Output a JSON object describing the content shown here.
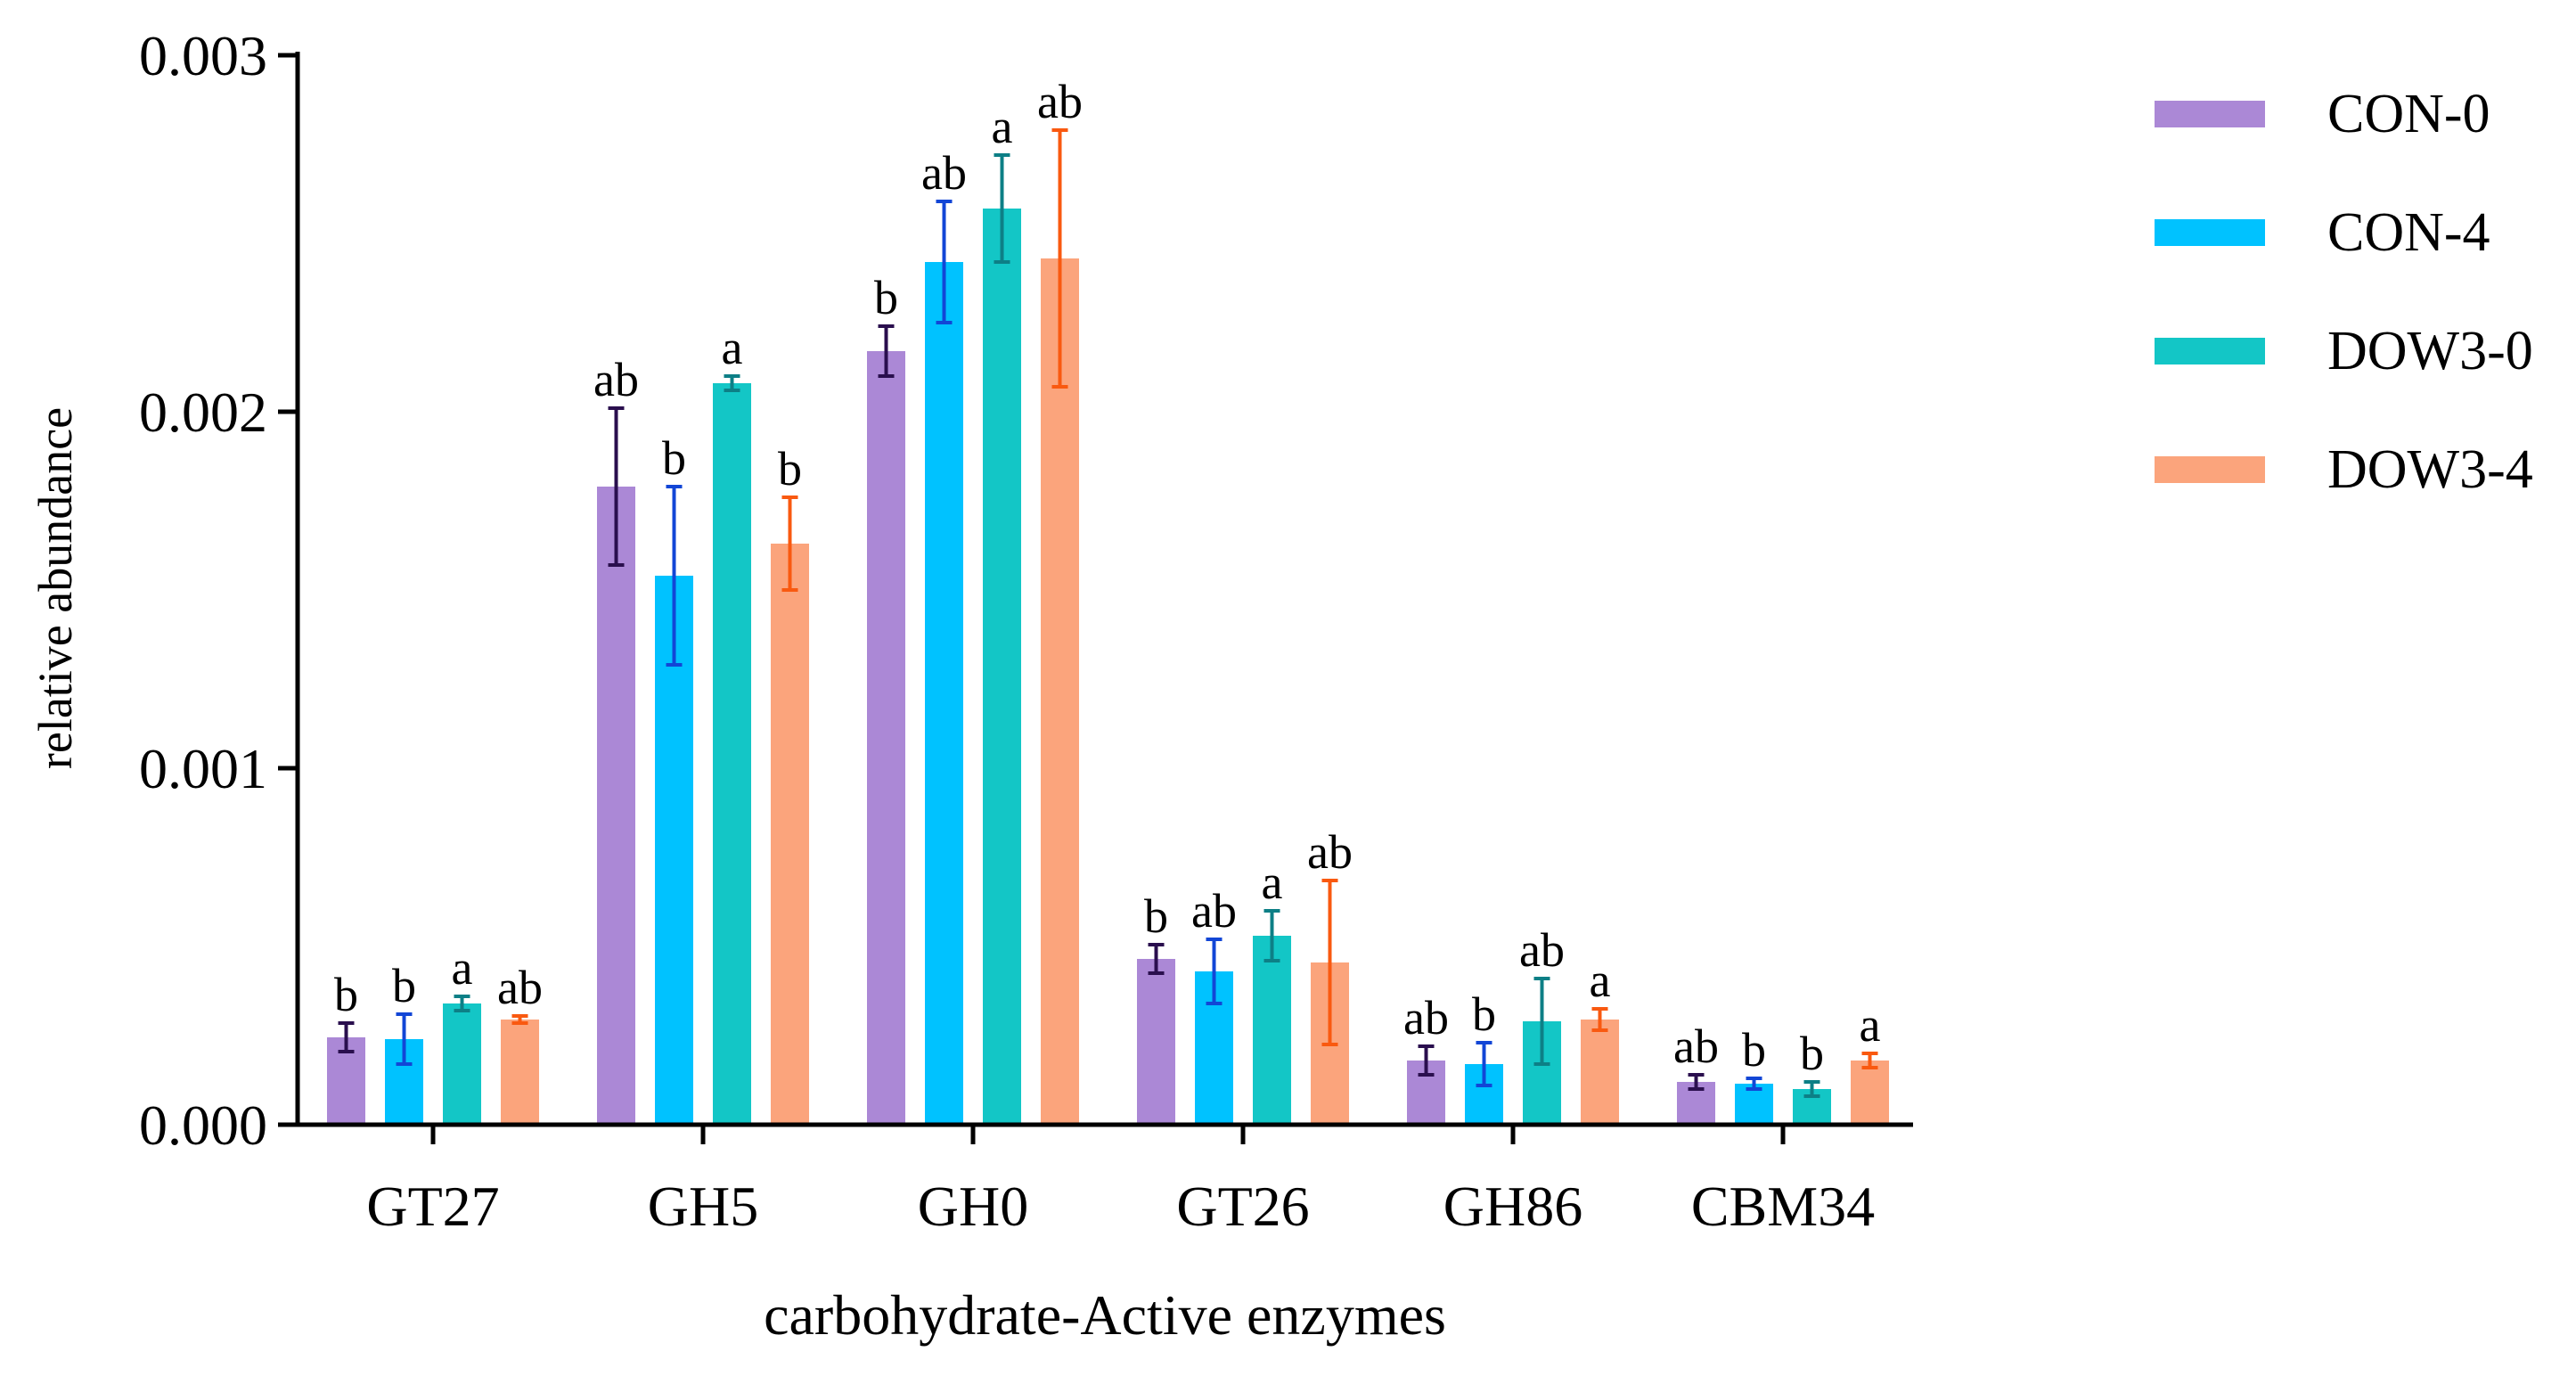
{
  "chart_data": {
    "type": "bar",
    "title": "",
    "xlabel": "carbohydrate-Active enzymes",
    "ylabel": "relative abundance",
    "ylim": [
      0,
      0.003
    ],
    "yticks": [
      "0.000",
      "0.001",
      "0.002",
      "0.003"
    ],
    "ytick_values": [
      0,
      0.001,
      0.002,
      0.003
    ],
    "grid": false,
    "legend_position": "top-right",
    "categories": [
      "GT27",
      "GH5",
      "GH0",
      "GT26",
      "GH86",
      "CBM34"
    ],
    "series": [
      {
        "name": "CON-0",
        "color": "#ab88d6",
        "error_color": "#2a0f4e",
        "values": [
          0.000245,
          0.00179,
          0.00217,
          0.000465,
          0.00018,
          0.00012
        ],
        "errors": [
          4e-05,
          0.00022,
          7e-05,
          4e-05,
          4e-05,
          2e-05
        ],
        "letters": [
          "b",
          "ab",
          "b",
          "b",
          "ab",
          "ab"
        ]
      },
      {
        "name": "CON-4",
        "color": "#00c2ff",
        "error_color": "#1246d6",
        "values": [
          0.00024,
          0.00154,
          0.00242,
          0.00043,
          0.00017,
          0.000115
        ],
        "errors": [
          7e-05,
          0.00025,
          0.00017,
          9e-05,
          6e-05,
          1.5e-05
        ],
        "letters": [
          "b",
          "b",
          "ab",
          "ab",
          "b",
          "b"
        ]
      },
      {
        "name": "DOW3-0",
        "color": "#13c6c6",
        "error_color": "#0d7f86",
        "values": [
          0.00034,
          0.00208,
          0.00257,
          0.00053,
          0.00029,
          0.0001
        ],
        "errors": [
          2e-05,
          2e-05,
          0.00015,
          7e-05,
          0.00012,
          2e-05
        ],
        "letters": [
          "a",
          "a",
          "a",
          "a",
          "ab",
          "b"
        ]
      },
      {
        "name": "DOW3-4",
        "color": "#fba47c",
        "error_color": "#f95910",
        "values": [
          0.000295,
          0.00163,
          0.00243,
          0.000455,
          0.000295,
          0.00018
        ],
        "errors": [
          1e-05,
          0.00013,
          0.00036,
          0.00023,
          3e-05,
          2e-05
        ],
        "letters": [
          "ab",
          "b",
          "ab",
          "ab",
          "a",
          "a"
        ]
      }
    ]
  }
}
